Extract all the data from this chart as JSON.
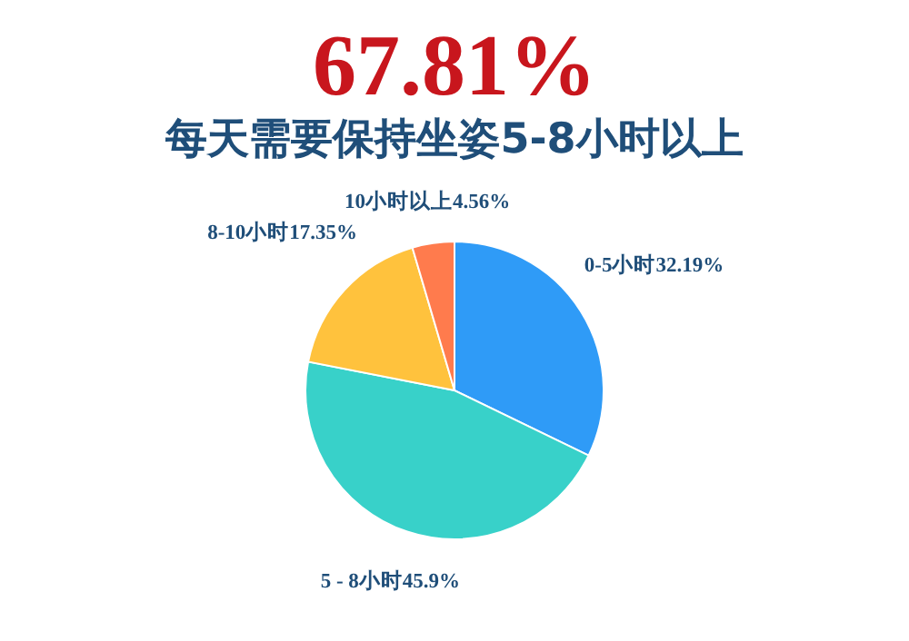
{
  "chart_data": {
    "type": "pie",
    "title": "67.81%",
    "subtitle": "每天需要保持坐姿5-8小时以上",
    "categories": [
      "0-5小时",
      "5 - 8小时",
      "8-10小时",
      "10小时以上"
    ],
    "values": [
      32.19,
      45.9,
      17.35,
      4.56
    ],
    "value_labels": [
      "32.19%",
      "45.9%",
      "17.35%",
      "4.56%"
    ],
    "colors": [
      "#2f9bf7",
      "#38d1c9",
      "#ffc23d",
      "#ff7b4d"
    ]
  }
}
